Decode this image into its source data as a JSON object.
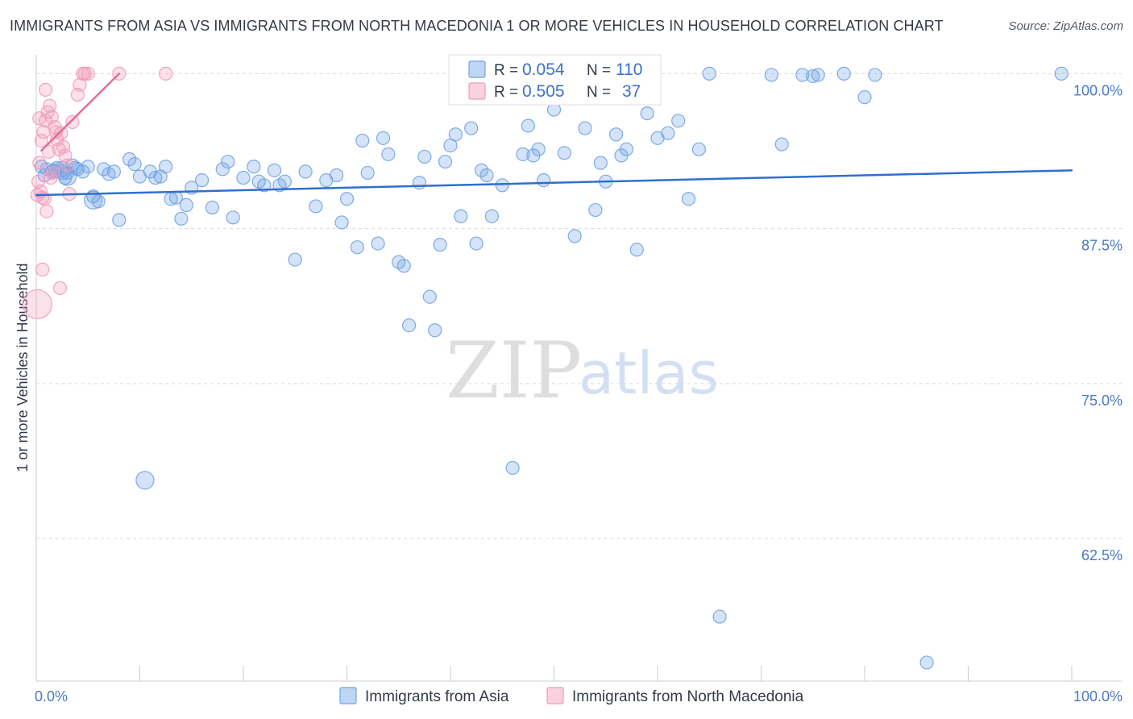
{
  "chart_data": {
    "type": "scatter",
    "title": "IMMIGRANTS FROM ASIA VS IMMIGRANTS FROM NORTH MACEDONIA 1 OR MORE VEHICLES IN HOUSEHOLD CORRELATION CHART",
    "source": "Source: ZipAtlas.com",
    "xlabel": "",
    "ylabel": "1 or more Vehicles in Household",
    "xlim": [
      0,
      100
    ],
    "ylim": [
      51,
      101
    ],
    "x_ticks": [
      "0.0%",
      "100.0%"
    ],
    "y_ticks": [
      {
        "value": 100.0,
        "label": "100.0%"
      },
      {
        "value": 87.5,
        "label": "87.5%"
      },
      {
        "value": 75.0,
        "label": "75.0%"
      },
      {
        "value": 62.5,
        "label": "62.5%"
      }
    ],
    "legend": {
      "position": "top-center",
      "entries": [
        {
          "r_label": "R =",
          "r_value": "0.054",
          "n_label": "N =",
          "n_value": "110"
        },
        {
          "r_label": "R =",
          "r_value": "0.505",
          "n_label": "N =",
          "n_value": "37"
        }
      ]
    },
    "watermark": {
      "zip": "ZIP",
      "atlas": "atlas"
    },
    "series": [
      {
        "name": "Immigrants from Asia",
        "color": "#6fa3e6",
        "line_color": "#2f6fd0",
        "trend": [
          [
            0,
            90.2
          ],
          [
            100,
            92.2
          ]
        ],
        "points": [
          [
            0.5,
            92.5
          ],
          [
            1,
            92.3
          ],
          [
            1.5,
            92.1
          ],
          [
            2,
            92.4
          ],
          [
            2.5,
            92.2
          ],
          [
            3,
            92.0
          ],
          [
            3.5,
            92.6
          ],
          [
            4,
            92.3
          ],
          [
            4.5,
            92.1
          ],
          [
            5,
            92.5
          ],
          [
            0.8,
            91.8
          ],
          [
            1.8,
            92.2
          ],
          [
            2.8,
            91.6
          ],
          [
            3.8,
            92.4
          ],
          [
            5.5,
            90.1
          ],
          [
            6,
            89.7
          ],
          [
            7.5,
            92.1
          ],
          [
            8,
            88.2
          ],
          [
            9,
            93.1
          ],
          [
            9.5,
            92.7
          ],
          [
            10,
            91.7
          ],
          [
            11,
            92.1
          ],
          [
            11.5,
            91.6
          ],
          [
            12,
            91.7
          ],
          [
            12.5,
            92.5
          ],
          [
            13,
            89.9
          ],
          [
            14,
            88.3
          ],
          [
            15,
            90.8
          ],
          [
            13.5,
            90.0
          ],
          [
            14.5,
            89.4
          ],
          [
            16,
            91.4
          ],
          [
            17,
            89.2
          ],
          [
            18,
            92.3
          ],
          [
            18.5,
            92.9
          ],
          [
            19,
            88.4
          ],
          [
            20,
            91.6
          ],
          [
            21,
            92.5
          ],
          [
            21.5,
            91.3
          ],
          [
            22,
            91.0
          ],
          [
            23,
            92.2
          ],
          [
            23.5,
            91.0
          ],
          [
            24,
            91.3
          ],
          [
            25,
            85.0
          ],
          [
            26,
            92.1
          ],
          [
            27,
            89.3
          ],
          [
            28,
            91.4
          ],
          [
            29,
            91.8
          ],
          [
            29.5,
            88.0
          ],
          [
            30,
            89.9
          ],
          [
            31,
            86.0
          ],
          [
            31.5,
            94.6
          ],
          [
            32,
            92.0
          ],
          [
            33,
            86.3
          ],
          [
            33.5,
            94.8
          ],
          [
            34,
            93.5
          ],
          [
            35,
            84.8
          ],
          [
            35.5,
            84.5
          ],
          [
            36,
            79.7
          ],
          [
            37,
            91.2
          ],
          [
            37.5,
            93.3
          ],
          [
            38,
            82.0
          ],
          [
            38.5,
            79.3
          ],
          [
            39,
            86.2
          ],
          [
            39.5,
            92.9
          ],
          [
            40,
            94.2
          ],
          [
            40.5,
            95.1
          ],
          [
            41,
            88.5
          ],
          [
            42,
            95.6
          ],
          [
            42.5,
            86.3
          ],
          [
            43,
            92.2
          ],
          [
            43.5,
            91.8
          ],
          [
            44,
            88.5
          ],
          [
            45,
            91.0
          ],
          [
            46,
            68.2
          ],
          [
            47,
            93.5
          ],
          [
            47.5,
            95.8
          ],
          [
            48,
            93.4
          ],
          [
            48.5,
            93.9
          ],
          [
            49,
            91.4
          ],
          [
            50,
            97.1
          ],
          [
            51,
            93.6
          ],
          [
            52,
            86.9
          ],
          [
            53,
            95.6
          ],
          [
            54,
            89.0
          ],
          [
            54.5,
            92.8
          ],
          [
            55,
            91.3
          ],
          [
            56,
            95.1
          ],
          [
            56.5,
            93.4
          ],
          [
            57,
            93.9
          ],
          [
            58,
            85.8
          ],
          [
            59,
            96.8
          ],
          [
            60,
            94.8
          ],
          [
            61,
            95.2
          ],
          [
            62,
            96.2
          ],
          [
            63,
            89.9
          ],
          [
            64,
            93.9
          ],
          [
            65,
            100.0
          ],
          [
            66,
            56.2
          ],
          [
            71,
            99.9
          ],
          [
            72,
            94.3
          ],
          [
            74,
            99.9
          ],
          [
            75,
            99.8
          ],
          [
            75.5,
            99.9
          ],
          [
            80,
            98.1
          ],
          [
            81,
            99.9
          ],
          [
            86,
            52.5
          ],
          [
            78,
            100.0
          ],
          [
            99,
            100.0
          ],
          [
            7,
            91.9
          ],
          [
            6.5,
            92.3
          ]
        ],
        "large_points": [
          [
            2.5,
            92.2
          ],
          [
            3,
            91.7
          ],
          [
            5.5,
            89.8
          ],
          [
            10.5,
            67.2
          ]
        ]
      },
      {
        "name": "Immigrants from North Macedonia",
        "color": "#f29ab8",
        "line_color": "#e36c95",
        "trend": [
          [
            0.5,
            93.8
          ],
          [
            8,
            100.0
          ]
        ],
        "points": [
          [
            0.2,
            91.3
          ],
          [
            0.4,
            90.5
          ],
          [
            0.6,
            90.0
          ],
          [
            0.8,
            89.9
          ],
          [
            1,
            88.9
          ],
          [
            1.2,
            93.7
          ],
          [
            0.3,
            92.8
          ],
          [
            0.5,
            94.6
          ],
          [
            0.7,
            95.3
          ],
          [
            0.9,
            96.2
          ],
          [
            1.1,
            96.9
          ],
          [
            1.3,
            97.4
          ],
          [
            1.5,
            96.5
          ],
          [
            1.8,
            95.7
          ],
          [
            2,
            94.7
          ],
          [
            2.2,
            93.9
          ],
          [
            2.4,
            95.2
          ],
          [
            2.6,
            94.1
          ],
          [
            2.8,
            93.4
          ],
          [
            3,
            92.6
          ],
          [
            3.2,
            90.3
          ],
          [
            3.5,
            96.1
          ],
          [
            4,
            98.3
          ],
          [
            4.2,
            99.1
          ],
          [
            4.5,
            100.0
          ],
          [
            4.7,
            100.0
          ],
          [
            5,
            100.0
          ],
          [
            8,
            100.0
          ],
          [
            12.5,
            100.0
          ],
          [
            0.6,
            84.2
          ],
          [
            2.3,
            82.7
          ],
          [
            1.4,
            91.6
          ],
          [
            1.6,
            92.0
          ],
          [
            0.3,
            96.4
          ],
          [
            0.9,
            98.7
          ],
          [
            1.9,
            95.3
          ],
          [
            0.1,
            90.2
          ]
        ],
        "large_points": [
          [
            0.1,
            81.4
          ]
        ]
      }
    ]
  }
}
